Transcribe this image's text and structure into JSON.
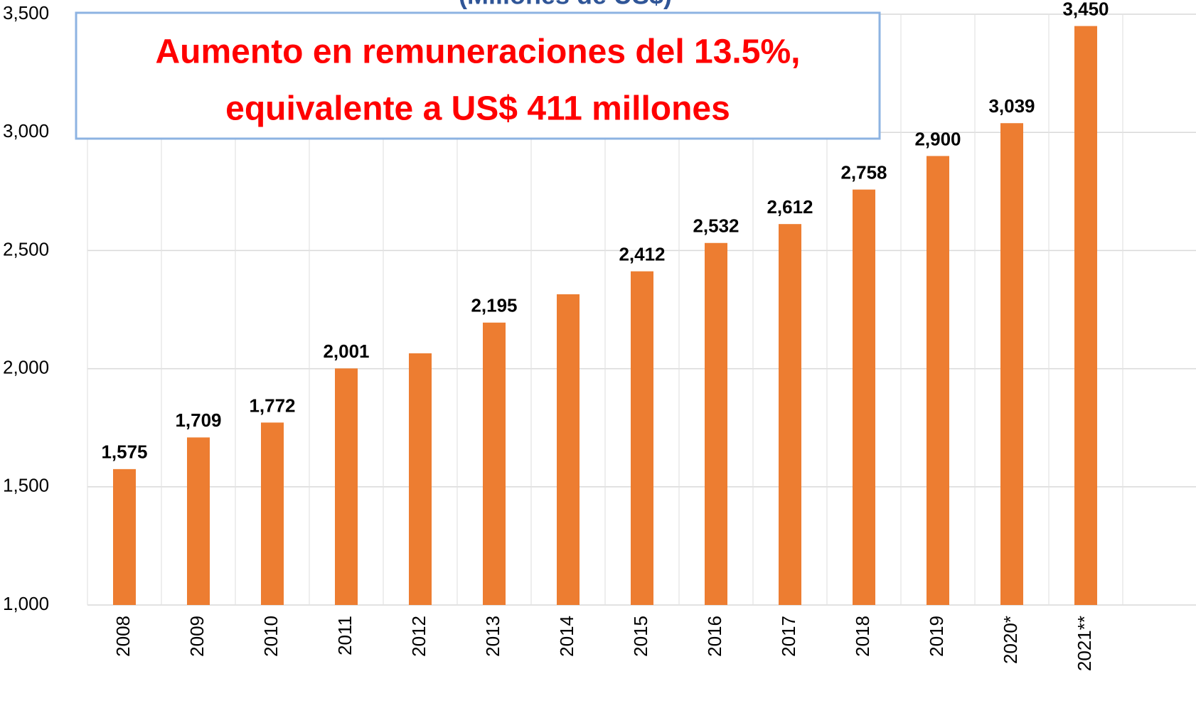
{
  "chart_data": {
    "type": "bar",
    "subtitle": "(Millones de US$)",
    "annotation": [
      "Aumento en remuneraciones del 13.5%,",
      "equivalente a US$ 411 millones"
    ],
    "categories": [
      "2008",
      "2009",
      "2010",
      "2011",
      "2012",
      "2013",
      "2014",
      "2015",
      "2016",
      "2017",
      "2018",
      "2019",
      "2020*",
      "2021**"
    ],
    "values": [
      1575,
      1709,
      1772,
      2001,
      2065,
      2195,
      2315,
      2412,
      2532,
      2612,
      2758,
      2900,
      3039,
      3450
    ],
    "value_labels": [
      "1,575",
      "1,709",
      "1,772",
      "2,001",
      null,
      "2,195",
      null,
      "2,412",
      "2,532",
      "2,612",
      "2,758",
      "2,900",
      "3,039",
      "3,450"
    ],
    "color": "#ed7d31",
    "ylim": [
      1000,
      3500
    ],
    "yticks": [
      {
        "value": 1000,
        "label": "1,000"
      },
      {
        "value": 1500,
        "label": "1,500"
      },
      {
        "value": 2000,
        "label": "2,000"
      },
      {
        "value": 2500,
        "label": "2,500"
      },
      {
        "value": 3000,
        "label": "3,000"
      },
      {
        "value": 3500,
        "label": "3,500"
      }
    ],
    "grid": true
  }
}
